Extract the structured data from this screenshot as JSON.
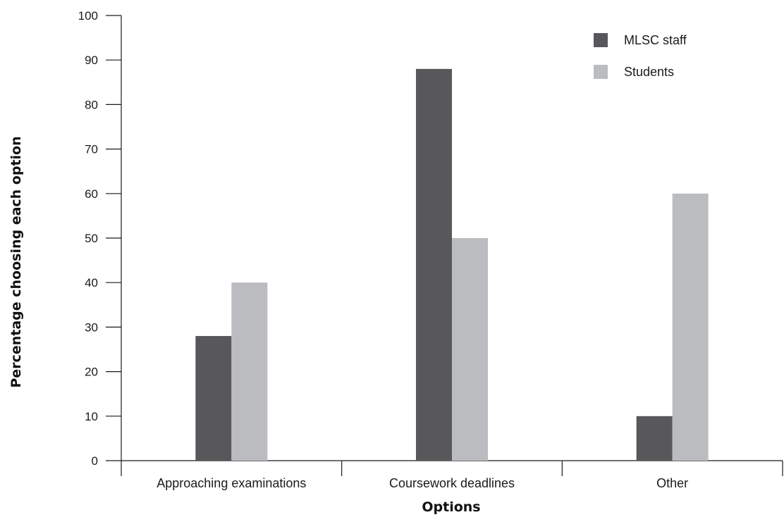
{
  "chart_data": {
    "type": "bar",
    "title": "",
    "xlabel": "Options",
    "ylabel": "Percentage choosing each option",
    "categories": [
      "Approaching examinations",
      "Coursework deadlines",
      "Other"
    ],
    "series": [
      {
        "name": "MLSC staff",
        "values": [
          28,
          88,
          10
        ],
        "color": "#58585a"
      },
      {
        "name": "Students",
        "values": [
          40,
          50,
          60
        ],
        "color": "#bbbcbf"
      }
    ],
    "ylim": [
      0,
      100
    ],
    "yticks": [
      0,
      10,
      20,
      30,
      40,
      50,
      60,
      70,
      80,
      90,
      100
    ],
    "grid": false,
    "legend_position": "top-right"
  }
}
